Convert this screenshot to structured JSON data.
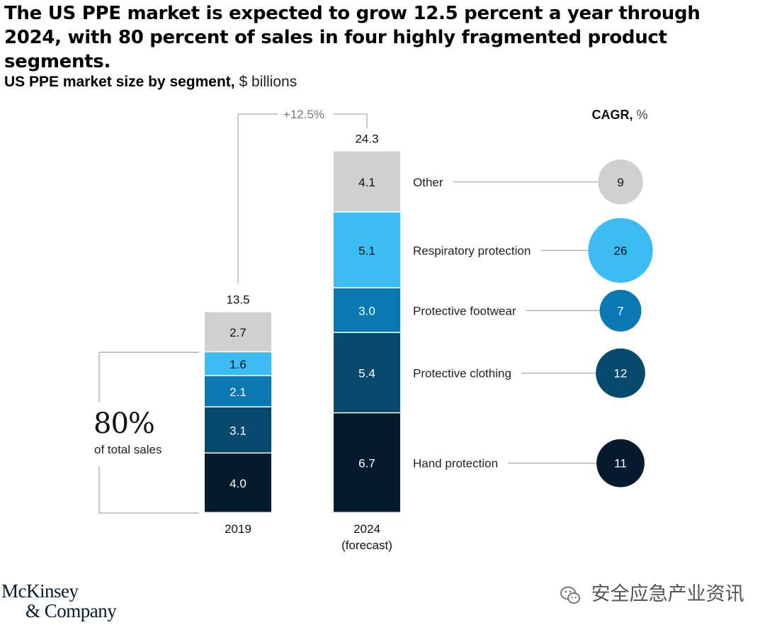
{
  "title": "The US PPE market is expected to grow 12.5 percent a year through 2024, with 80 percent of sales in four highly fragmented product segments.",
  "subtitle_bold": "US PPE market size by segment,",
  "subtitle_unit": "$ billions",
  "cagr_header_bold": "CAGR,",
  "cagr_header_unit": "%",
  "growth_label": "+12.5%",
  "share_value": "80%",
  "share_label": "of total sales",
  "logo_line1": "McKinsey",
  "logo_line2": "& Company",
  "watermark": "安全应急产业资讯",
  "colors": {
    "other": "#d0d0d0",
    "respiratory": "#3bbdf3",
    "footwear": "#0a79b2",
    "clothing": "#084a6e",
    "hand": "#061c2e",
    "line": "#aaaaaa"
  },
  "chart_data": {
    "type": "bar",
    "stacked": true,
    "title": "US PPE market size by segment, $ billions",
    "categories": [
      "2019",
      "2024\n(forecast)"
    ],
    "category_lines": [
      [
        "2019"
      ],
      [
        "2024",
        "(forecast)"
      ]
    ],
    "totals": [
      "13.5",
      "24.3"
    ],
    "series": [
      {
        "name": "Hand protection",
        "key": "hand",
        "values": [
          4.0,
          6.7
        ],
        "labels": [
          "4.0",
          "6.7"
        ],
        "cagr": 11
      },
      {
        "name": "Protective clothing",
        "key": "clothing",
        "values": [
          3.1,
          5.4
        ],
        "labels": [
          "3.1",
          "5.4"
        ],
        "cagr": 12
      },
      {
        "name": "Protective footwear",
        "key": "footwear",
        "values": [
          2.1,
          3.0
        ],
        "labels": [
          "2.1",
          "3.0"
        ],
        "cagr": 7
      },
      {
        "name": "Respiratory protection",
        "key": "respiratory",
        "values": [
          1.6,
          5.1
        ],
        "labels": [
          "1.6",
          "5.1"
        ],
        "cagr": 26
      },
      {
        "name": "Other",
        "key": "other",
        "values": [
          2.7,
          4.1
        ],
        "labels": [
          "2.7",
          "4.1"
        ],
        "cagr": 9
      }
    ]
  }
}
